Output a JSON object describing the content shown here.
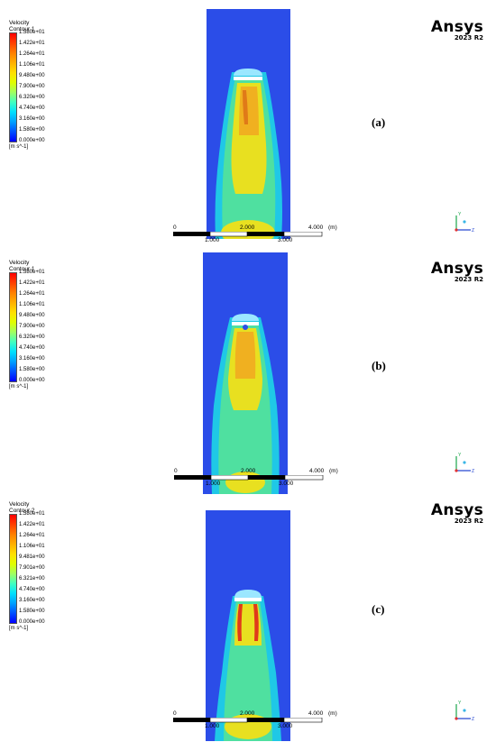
{
  "brand": {
    "name": "Ansys",
    "version": "2023 R2"
  },
  "colormap": [
    "#0000ff",
    "#0050ff",
    "#00a0ff",
    "#00e0ff",
    "#40ffc0",
    "#a0ff60",
    "#e0ff00",
    "#ffe000",
    "#ffb000",
    "#ff8000",
    "#ff4000",
    "#ff0000"
  ],
  "panels": [
    {
      "tag": "(a)",
      "legend": {
        "title_line1": "Velocity",
        "title_line2": "Contour 1",
        "ticks": [
          "1.580e+01",
          "1.422e+01",
          "1.264e+01",
          "1.106e+01",
          "9.480e+00",
          "7.900e+00",
          "6.320e+00",
          "4.740e+00",
          "3.160e+00",
          "1.580e+00",
          "0.000e+00"
        ],
        "unit": "[m s^-1]"
      },
      "scale": {
        "left": "0",
        "mid": "2.000",
        "right": "4.000",
        "unit": "(m)",
        "sub1": "1.000",
        "sub3": "3.000"
      },
      "axes": {
        "y": "Y",
        "z": "Z"
      }
    },
    {
      "tag": "(b)",
      "legend": {
        "title_line1": "Velocity",
        "title_line2": "Contour 1",
        "ticks": [
          "1.580e+01",
          "1.422e+01",
          "1.264e+01",
          "1.106e+01",
          "9.480e+00",
          "7.900e+00",
          "6.320e+00",
          "4.740e+00",
          "3.160e+00",
          "1.580e+00",
          "0.000e+00"
        ],
        "unit": "[m s^-1]"
      },
      "scale": {
        "left": "0",
        "mid": "2.000",
        "right": "4.000",
        "unit": "(m)",
        "sub1": "1.000",
        "sub3": "3.000"
      },
      "axes": {
        "y": "Y",
        "z": "Z"
      }
    },
    {
      "tag": "(c)",
      "legend": {
        "title_line1": "Velocity",
        "title_line2": "Contour 2",
        "ticks": [
          "1.580e+01",
          "1.422e+01",
          "1.264e+01",
          "1.106e+01",
          "9.481e+00",
          "7.901e+00",
          "6.321e+00",
          "4.740e+00",
          "3.160e+00",
          "1.580e+00",
          "0.000e+00"
        ],
        "unit": "[m s^-1]"
      },
      "scale": {
        "left": "0",
        "mid": "2.000",
        "right": "4.000",
        "unit": "(m)",
        "sub1": "1.000",
        "sub3": "3.000"
      },
      "axes": {
        "y": "Y",
        "z": "Z"
      }
    }
  ]
}
